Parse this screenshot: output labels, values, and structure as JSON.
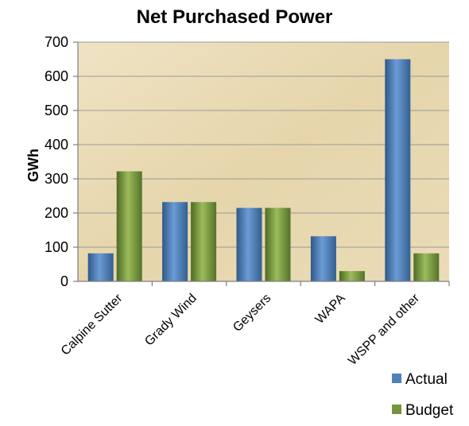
{
  "chart_data": {
    "type": "bar",
    "title": "Net Purchased Power",
    "xlabel": "",
    "ylabel": "GWh",
    "ylim": [
      0,
      700
    ],
    "yticks": [
      0,
      100,
      200,
      300,
      400,
      500,
      600,
      700
    ],
    "categories": [
      "Calpine Sutter",
      "Grady Wind",
      "Geysers",
      "WAPA",
      "WSPP and other"
    ],
    "series": [
      {
        "name": "Actual",
        "values": [
          82,
          232,
          215,
          132,
          650
        ],
        "color": "#4f81bd"
      },
      {
        "name": "Budget",
        "values": [
          322,
          232,
          215,
          30,
          82
        ],
        "color": "#77933c"
      }
    ],
    "grid": true,
    "legend_position": "bottom-right",
    "plot_background": "parchment"
  }
}
